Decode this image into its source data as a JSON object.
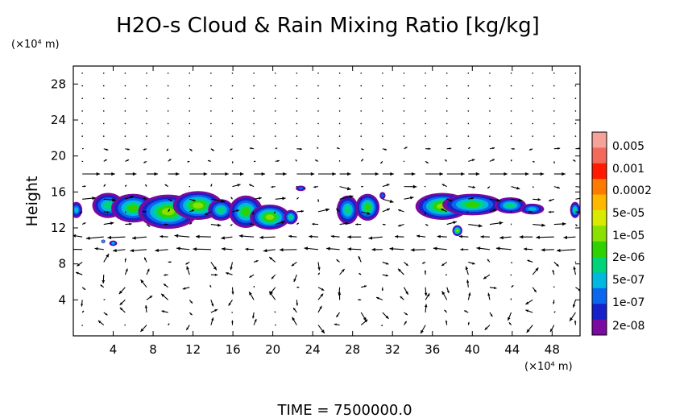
{
  "chart_data": {
    "type": "contour-vector",
    "title": "H2O-s Cloud & Rain Mixing Ratio [kg/kg]",
    "ylabel": "Height",
    "y_unit_label": "(×10⁴ m)",
    "x_unit_label": "(×10⁴ m)",
    "xlim": [
      0,
      50.8
    ],
    "ylim": [
      0,
      30
    ],
    "x_ticks": [
      4,
      8,
      12,
      16,
      20,
      24,
      28,
      32,
      36,
      40,
      44,
      48
    ],
    "x_tick_labels": [
      "4",
      "8",
      "12",
      "16",
      "20",
      "24",
      "28",
      "32",
      "36",
      "40",
      "44",
      "48"
    ],
    "y_ticks": [
      4,
      8,
      12,
      16,
      20,
      24,
      28
    ],
    "y_tick_labels": [
      "4",
      "8",
      "12",
      "16",
      "20",
      "24",
      "28"
    ],
    "legend": {
      "labels": [
        "0.005",
        "0.001",
        "0.0002",
        "5e-05",
        "1e-05",
        "2e-06",
        "5e-07",
        "1e-07",
        "2e-08"
      ],
      "colors_top_to_bottom": [
        "#f4a29a",
        "#f26a5a",
        "#ff1a00",
        "#ff7a00",
        "#ffb800",
        "#d8ea00",
        "#8ae000",
        "#2ed200",
        "#00d47a",
        "#00b8e0",
        "#0a66ee",
        "#1622c8",
        "#7a0aa0"
      ]
    },
    "cloud_regions": [
      {
        "x": 0.3,
        "y": 14.0,
        "rx": 0.6,
        "ry": 0.9,
        "level": 2
      },
      {
        "x": 3.5,
        "y": 14.5,
        "rx": 1.6,
        "ry": 1.4,
        "level": 3
      },
      {
        "x": 6.0,
        "y": 14.2,
        "rx": 2.2,
        "ry": 1.6,
        "level": 4
      },
      {
        "x": 9.5,
        "y": 13.8,
        "rx": 3.0,
        "ry": 1.9,
        "level": 5
      },
      {
        "x": 12.5,
        "y": 14.5,
        "rx": 2.5,
        "ry": 1.6,
        "level": 5
      },
      {
        "x": 14.8,
        "y": 14.0,
        "rx": 1.3,
        "ry": 1.2,
        "level": 3
      },
      {
        "x": 17.3,
        "y": 13.8,
        "rx": 1.7,
        "ry": 1.8,
        "level": 4
      },
      {
        "x": 19.7,
        "y": 13.2,
        "rx": 2.0,
        "ry": 1.4,
        "level": 5
      },
      {
        "x": 21.8,
        "y": 13.2,
        "rx": 0.7,
        "ry": 0.8,
        "level": 3
      },
      {
        "x": 22.8,
        "y": 16.4,
        "rx": 0.5,
        "ry": 0.3,
        "level": 1
      },
      {
        "x": 27.5,
        "y": 14.0,
        "rx": 1.1,
        "ry": 1.6,
        "level": 3
      },
      {
        "x": 29.5,
        "y": 14.3,
        "rx": 1.2,
        "ry": 1.5,
        "level": 4
      },
      {
        "x": 31.0,
        "y": 15.6,
        "rx": 0.3,
        "ry": 0.4,
        "level": 1
      },
      {
        "x": 37.0,
        "y": 14.4,
        "rx": 2.7,
        "ry": 1.5,
        "level": 5
      },
      {
        "x": 40.0,
        "y": 14.6,
        "rx": 3.0,
        "ry": 1.2,
        "level": 4
      },
      {
        "x": 43.8,
        "y": 14.5,
        "rx": 1.6,
        "ry": 0.9,
        "level": 3
      },
      {
        "x": 46.0,
        "y": 14.1,
        "rx": 1.2,
        "ry": 0.6,
        "level": 2
      },
      {
        "x": 50.3,
        "y": 14.0,
        "rx": 0.5,
        "ry": 0.9,
        "level": 3
      },
      {
        "x": 38.5,
        "y": 11.7,
        "rx": 0.5,
        "ry": 0.6,
        "level": 5
      },
      {
        "x": 4.0,
        "y": 10.3,
        "rx": 0.4,
        "ry": 0.3,
        "level": 2
      },
      {
        "x": 3.0,
        "y": 10.5,
        "rx": 0.2,
        "ry": 0.2,
        "level": 2
      }
    ]
  },
  "footer": {
    "time_label": "TIME  =  7500000.0"
  }
}
